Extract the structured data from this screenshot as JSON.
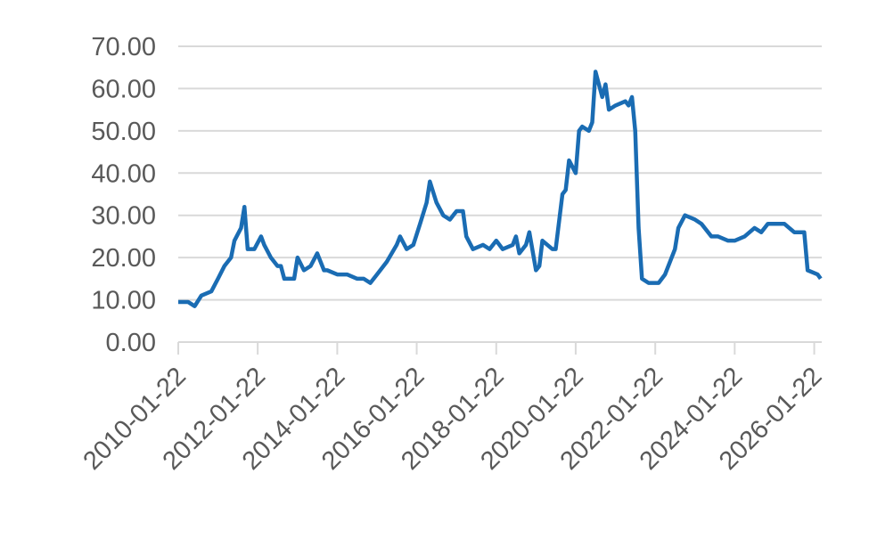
{
  "chart_data": {
    "type": "line",
    "x": [
      "2010-01-22",
      "2010-04-22",
      "2010-06-22",
      "2010-08-22",
      "2010-11-22",
      "2011-01-22",
      "2011-03-22",
      "2011-05-22",
      "2011-06-22",
      "2011-08-22",
      "2011-09-22",
      "2011-10-22",
      "2011-12-22",
      "2012-02-22",
      "2012-03-22",
      "2012-05-22",
      "2012-07-22",
      "2012-08-22",
      "2012-09-22",
      "2012-12-22",
      "2013-01-22",
      "2013-03-22",
      "2013-05-22",
      "2013-07-22",
      "2013-09-22",
      "2013-10-22",
      "2014-01-22",
      "2014-04-22",
      "2014-07-22",
      "2014-09-22",
      "2014-11-22",
      "2015-01-22",
      "2015-04-22",
      "2015-07-22",
      "2015-08-22",
      "2015-10-22",
      "2015-12-22",
      "2016-02-22",
      "2016-04-22",
      "2016-05-22",
      "2016-07-22",
      "2016-09-22",
      "2016-11-22",
      "2017-01-22",
      "2017-03-22",
      "2017-04-22",
      "2017-06-22",
      "2017-09-22",
      "2017-11-22",
      "2018-01-22",
      "2018-03-22",
      "2018-06-22",
      "2018-07-22",
      "2018-08-22",
      "2018-10-22",
      "2018-11-22",
      "2019-01-22",
      "2019-02-22",
      "2019-03-22",
      "2019-06-22",
      "2019-07-22",
      "2019-09-22",
      "2019-10-22",
      "2019-11-22",
      "2020-01-22",
      "2020-02-22",
      "2020-03-22",
      "2020-05-22",
      "2020-06-22",
      "2020-07-22",
      "2020-09-22",
      "2020-10-22",
      "2020-11-22",
      "2021-01-22",
      "2021-04-22",
      "2021-05-22",
      "2021-06-22",
      "2021-07-22",
      "2021-08-22",
      "2021-09-22",
      "2021-11-22",
      "2022-02-22",
      "2022-04-22",
      "2022-07-22",
      "2022-08-22",
      "2022-10-22",
      "2023-01-22",
      "2023-03-22",
      "2023-06-22",
      "2023-08-22",
      "2023-11-22",
      "2024-01-22",
      "2024-04-22",
      "2024-07-22",
      "2024-09-22",
      "2024-11-22",
      "2025-01-22",
      "2025-04-22",
      "2025-07-22",
      "2025-10-22",
      "2025-11-22",
      "2026-02-22",
      "2026-03-22"
    ],
    "series": [
      {
        "color": "#1a6cb3",
        "values": [
          9.5,
          9.5,
          8.5,
          11,
          12,
          15,
          18,
          20,
          24,
          27,
          32,
          22,
          22,
          25,
          23,
          20,
          18,
          18,
          15,
          15,
          20,
          17,
          18,
          21,
          17,
          17,
          16,
          16,
          15,
          15,
          14,
          16,
          19,
          23,
          25,
          22,
          23,
          28,
          33,
          38,
          33,
          30,
          29,
          31,
          31,
          25,
          22,
          23,
          22,
          24,
          22,
          23,
          25,
          21,
          23,
          26,
          17,
          18,
          24,
          22,
          22,
          35,
          36,
          43,
          40,
          50,
          51,
          50,
          52,
          64,
          58,
          61,
          55,
          56,
          57,
          56,
          58,
          50,
          27,
          15,
          14,
          14,
          16,
          22,
          27,
          30,
          29,
          28,
          25,
          25,
          24,
          24,
          25,
          27,
          26,
          28,
          28,
          28,
          26,
          26,
          17,
          16,
          15
        ]
      }
    ],
    "xlim": [
      "2010-01-22",
      "2026-04-01"
    ],
    "xticks": [
      "2010-01-22",
      "2012-01-22",
      "2014-01-22",
      "2016-01-22",
      "2018-01-22",
      "2020-01-22",
      "2022-01-22",
      "2024-01-22",
      "2026-01-22"
    ],
    "ylim": [
      0,
      70
    ],
    "yticks": [
      {
        "value": 0,
        "label": "0.00"
      },
      {
        "value": 10,
        "label": "10.00"
      },
      {
        "value": 20,
        "label": "20.00"
      },
      {
        "value": 30,
        "label": "30.00"
      },
      {
        "value": 40,
        "label": "40.00"
      },
      {
        "value": 50,
        "label": "50.00"
      },
      {
        "value": 60,
        "label": "60.00"
      },
      {
        "value": 70,
        "label": "70.00"
      }
    ],
    "grid": true
  }
}
